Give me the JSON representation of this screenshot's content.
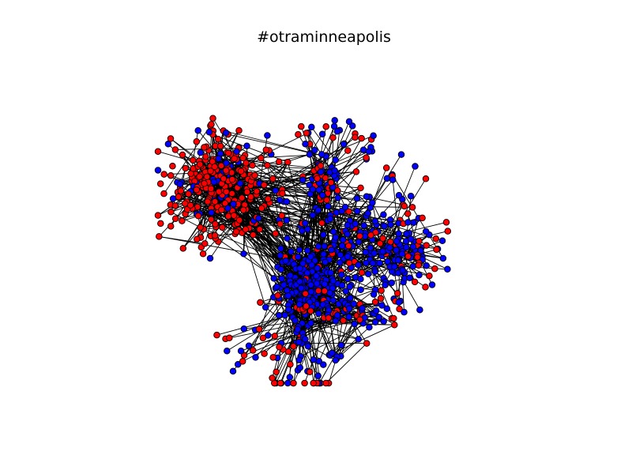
{
  "figure": {
    "title": "#otraminneapolis"
  },
  "graph": {
    "type": "network",
    "node_colors": {
      "group_a": "#ff0000",
      "group_b": "#0000ff"
    },
    "node_outline": "#000000",
    "edge_color": "#000000",
    "clusters": {
      "left_cluster": "group_a",
      "right_cluster": "group_b"
    }
  }
}
